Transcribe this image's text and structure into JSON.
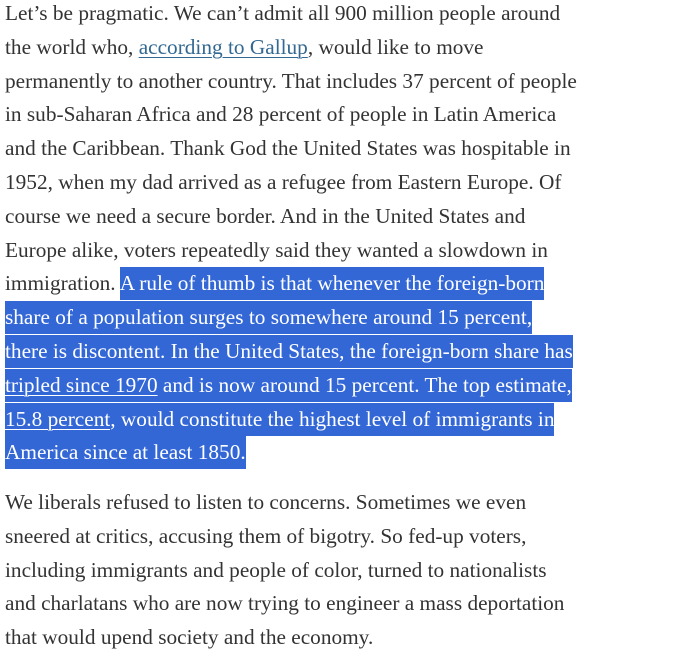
{
  "paragraphs": [
    {
      "lines": [
        [
          {
            "text": "Let’s be pragmatic. We can’t admit all 900 million people around"
          }
        ],
        [
          {
            "text": "the world who, "
          },
          {
            "text": "according to Gallup",
            "link": true
          },
          {
            "text": ", would like to move"
          }
        ],
        [
          {
            "text": "permanently to another country. That includes 37 percent of people"
          }
        ],
        [
          {
            "text": "in sub-Saharan Africa and 28 percent of people in Latin America"
          }
        ],
        [
          {
            "text": "and the Caribbean. Thank God the United States was hospitable in"
          }
        ],
        [
          {
            "text": "1952, when my dad arrived as a refugee from Eastern Europe. Of"
          }
        ],
        [
          {
            "text": "course we need a secure border. And in the United States and"
          }
        ],
        [
          {
            "text": "Europe alike, voters repeatedly said they wanted a slowdown in"
          }
        ],
        [
          {
            "text": "immigration. "
          },
          {
            "text": "A rule of thumb is that whenever the foreign-born",
            "hl": true
          }
        ],
        [
          {
            "text": "share of a population surges to somewhere around 15 percent,",
            "hl": true
          }
        ],
        [
          {
            "text": "there is discontent. In the United States, the foreign-born share has",
            "hl": true
          }
        ],
        [
          {
            "text": "tripled since 1970",
            "hl": true,
            "link": true
          },
          {
            "text": " and is now around 15 percent. The top estimate,",
            "hl": true
          }
        ],
        [
          {
            "text": "15.8 percent",
            "hl": true,
            "link": true
          },
          {
            "text": ", would constitute the highest level of immigrants in",
            "hl": true
          }
        ],
        [
          {
            "text": "America since at least 1850.",
            "hl": true
          }
        ]
      ]
    },
    {
      "lines": [
        [
          {
            "text": "We liberals refused to listen to concerns. Sometimes we even"
          }
        ],
        [
          {
            "text": "sneered at critics, accusing them of bigotry. So fed-up voters,"
          }
        ],
        [
          {
            "text": "including immigrants and people of color, turned to nationalists"
          }
        ],
        [
          {
            "text": "and charlatans who are now trying to engineer a mass deportation"
          }
        ],
        [
          {
            "text": "that would upend society and the economy."
          }
        ]
      ]
    }
  ],
  "colors": {
    "text": "#333333",
    "link": "#326891",
    "selection_background": "#3367d6",
    "selection_text": "#ffffff"
  }
}
